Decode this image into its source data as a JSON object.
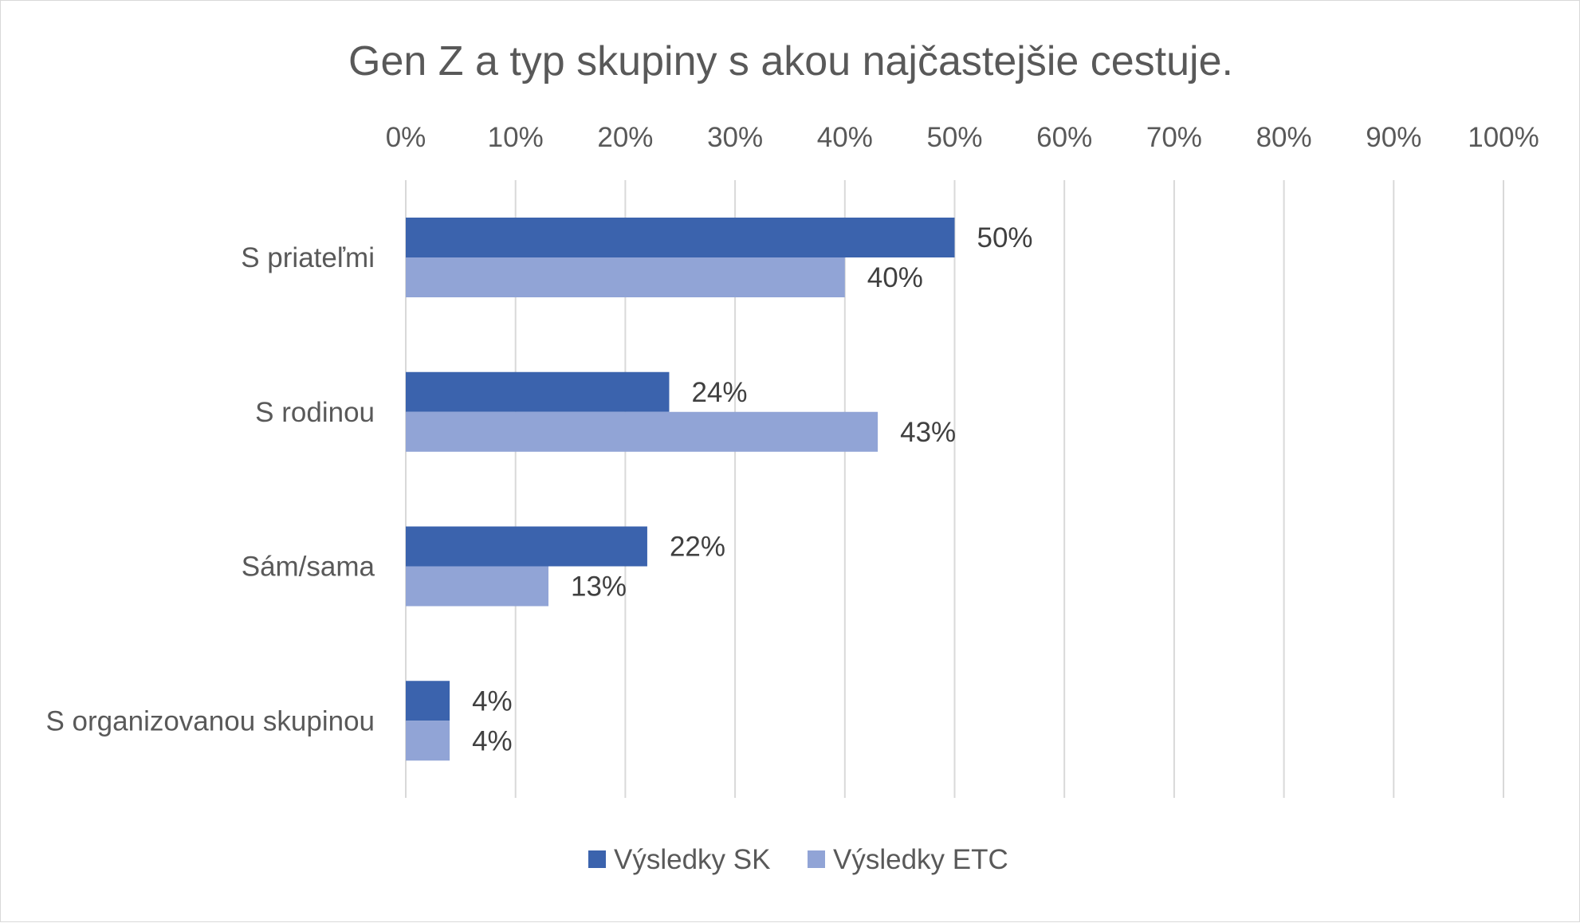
{
  "chart_data": {
    "type": "bar",
    "orientation": "horizontal",
    "title": "Gen Z a typ skupiny s akou najčastejšie cestuje.",
    "categories": [
      "S priateľmi",
      "S rodinou",
      "Sám/sama",
      "S organizovanou skupinou"
    ],
    "series": [
      {
        "name": "Výsledky SK",
        "values": [
          50,
          24,
          22,
          4
        ],
        "color": "#3b63ad"
      },
      {
        "name": "Výsledky ETC",
        "values": [
          40,
          43,
          13,
          4
        ],
        "color": "#91a4d6"
      }
    ],
    "data_labels": [
      [
        "50%",
        "24%",
        "22%",
        "4%"
      ],
      [
        "40%",
        "43%",
        "13%",
        "4%"
      ]
    ],
    "x_ticks": [
      "0%",
      "10%",
      "20%",
      "30%",
      "40%",
      "50%",
      "60%",
      "70%",
      "80%",
      "90%",
      "100%"
    ],
    "xlim": [
      0,
      100
    ],
    "axis_position": "top",
    "grid": true,
    "legend_position": "bottom"
  }
}
